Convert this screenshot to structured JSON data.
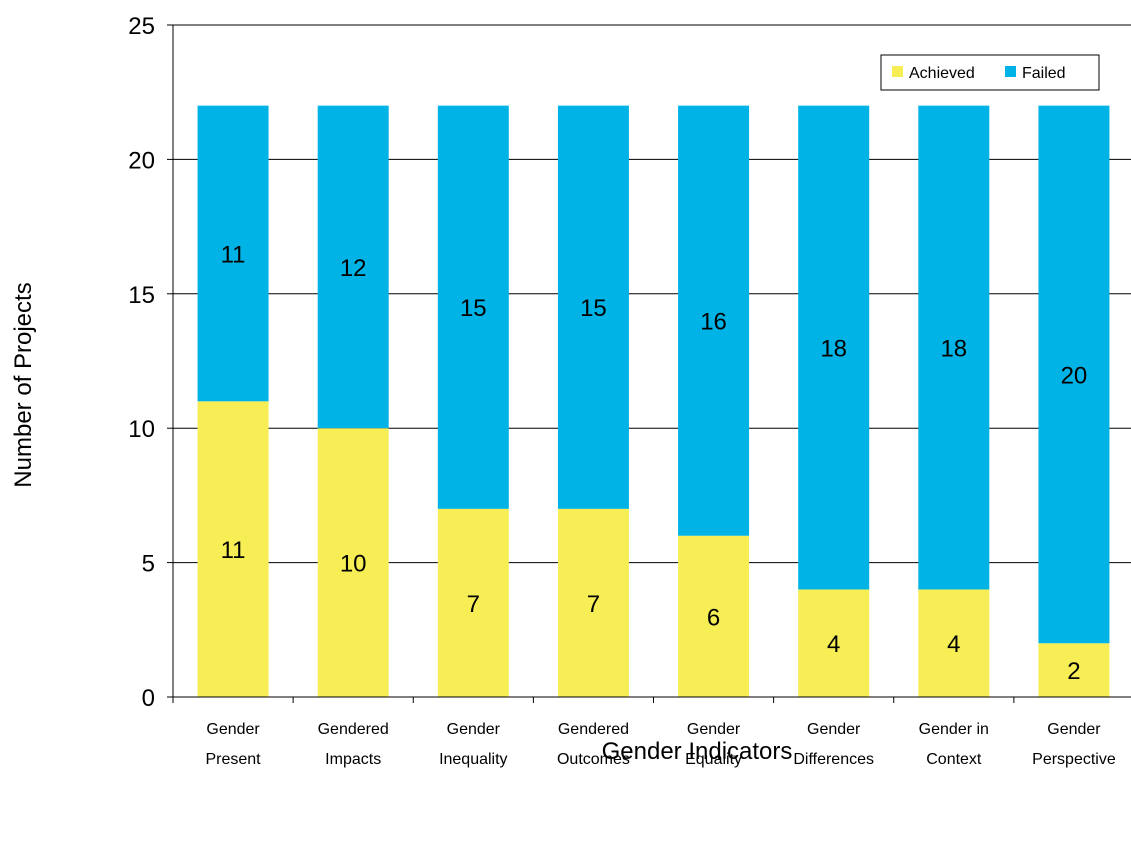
{
  "chart_data": {
    "type": "bar",
    "stacked": true,
    "title": "",
    "xlabel": "Gender Indicators",
    "ylabel": "Number of Projects",
    "ylim": [
      0,
      25
    ],
    "yticks": [
      0,
      5,
      10,
      15,
      20,
      25
    ],
    "categories": [
      [
        "Gender",
        "Present"
      ],
      [
        "Gendered",
        "Impacts"
      ],
      [
        "Gender",
        "Inequality"
      ],
      [
        "Gendered",
        "Outcomes"
      ],
      [
        "Gender",
        "Equality"
      ],
      [
        "Gender",
        "Differences"
      ],
      [
        "Gender in",
        "Context"
      ],
      [
        "Gender",
        "Perspective"
      ]
    ],
    "series": [
      {
        "name": "Achieved",
        "color": "#F7EE55",
        "values": [
          11,
          10,
          7,
          7,
          6,
          4,
          4,
          2
        ]
      },
      {
        "name": "Failed",
        "color": "#00B3E6",
        "values": [
          11,
          12,
          15,
          15,
          16,
          18,
          18,
          20
        ]
      }
    ],
    "grid": true,
    "legend_position": "top-right",
    "data_labels": true
  }
}
